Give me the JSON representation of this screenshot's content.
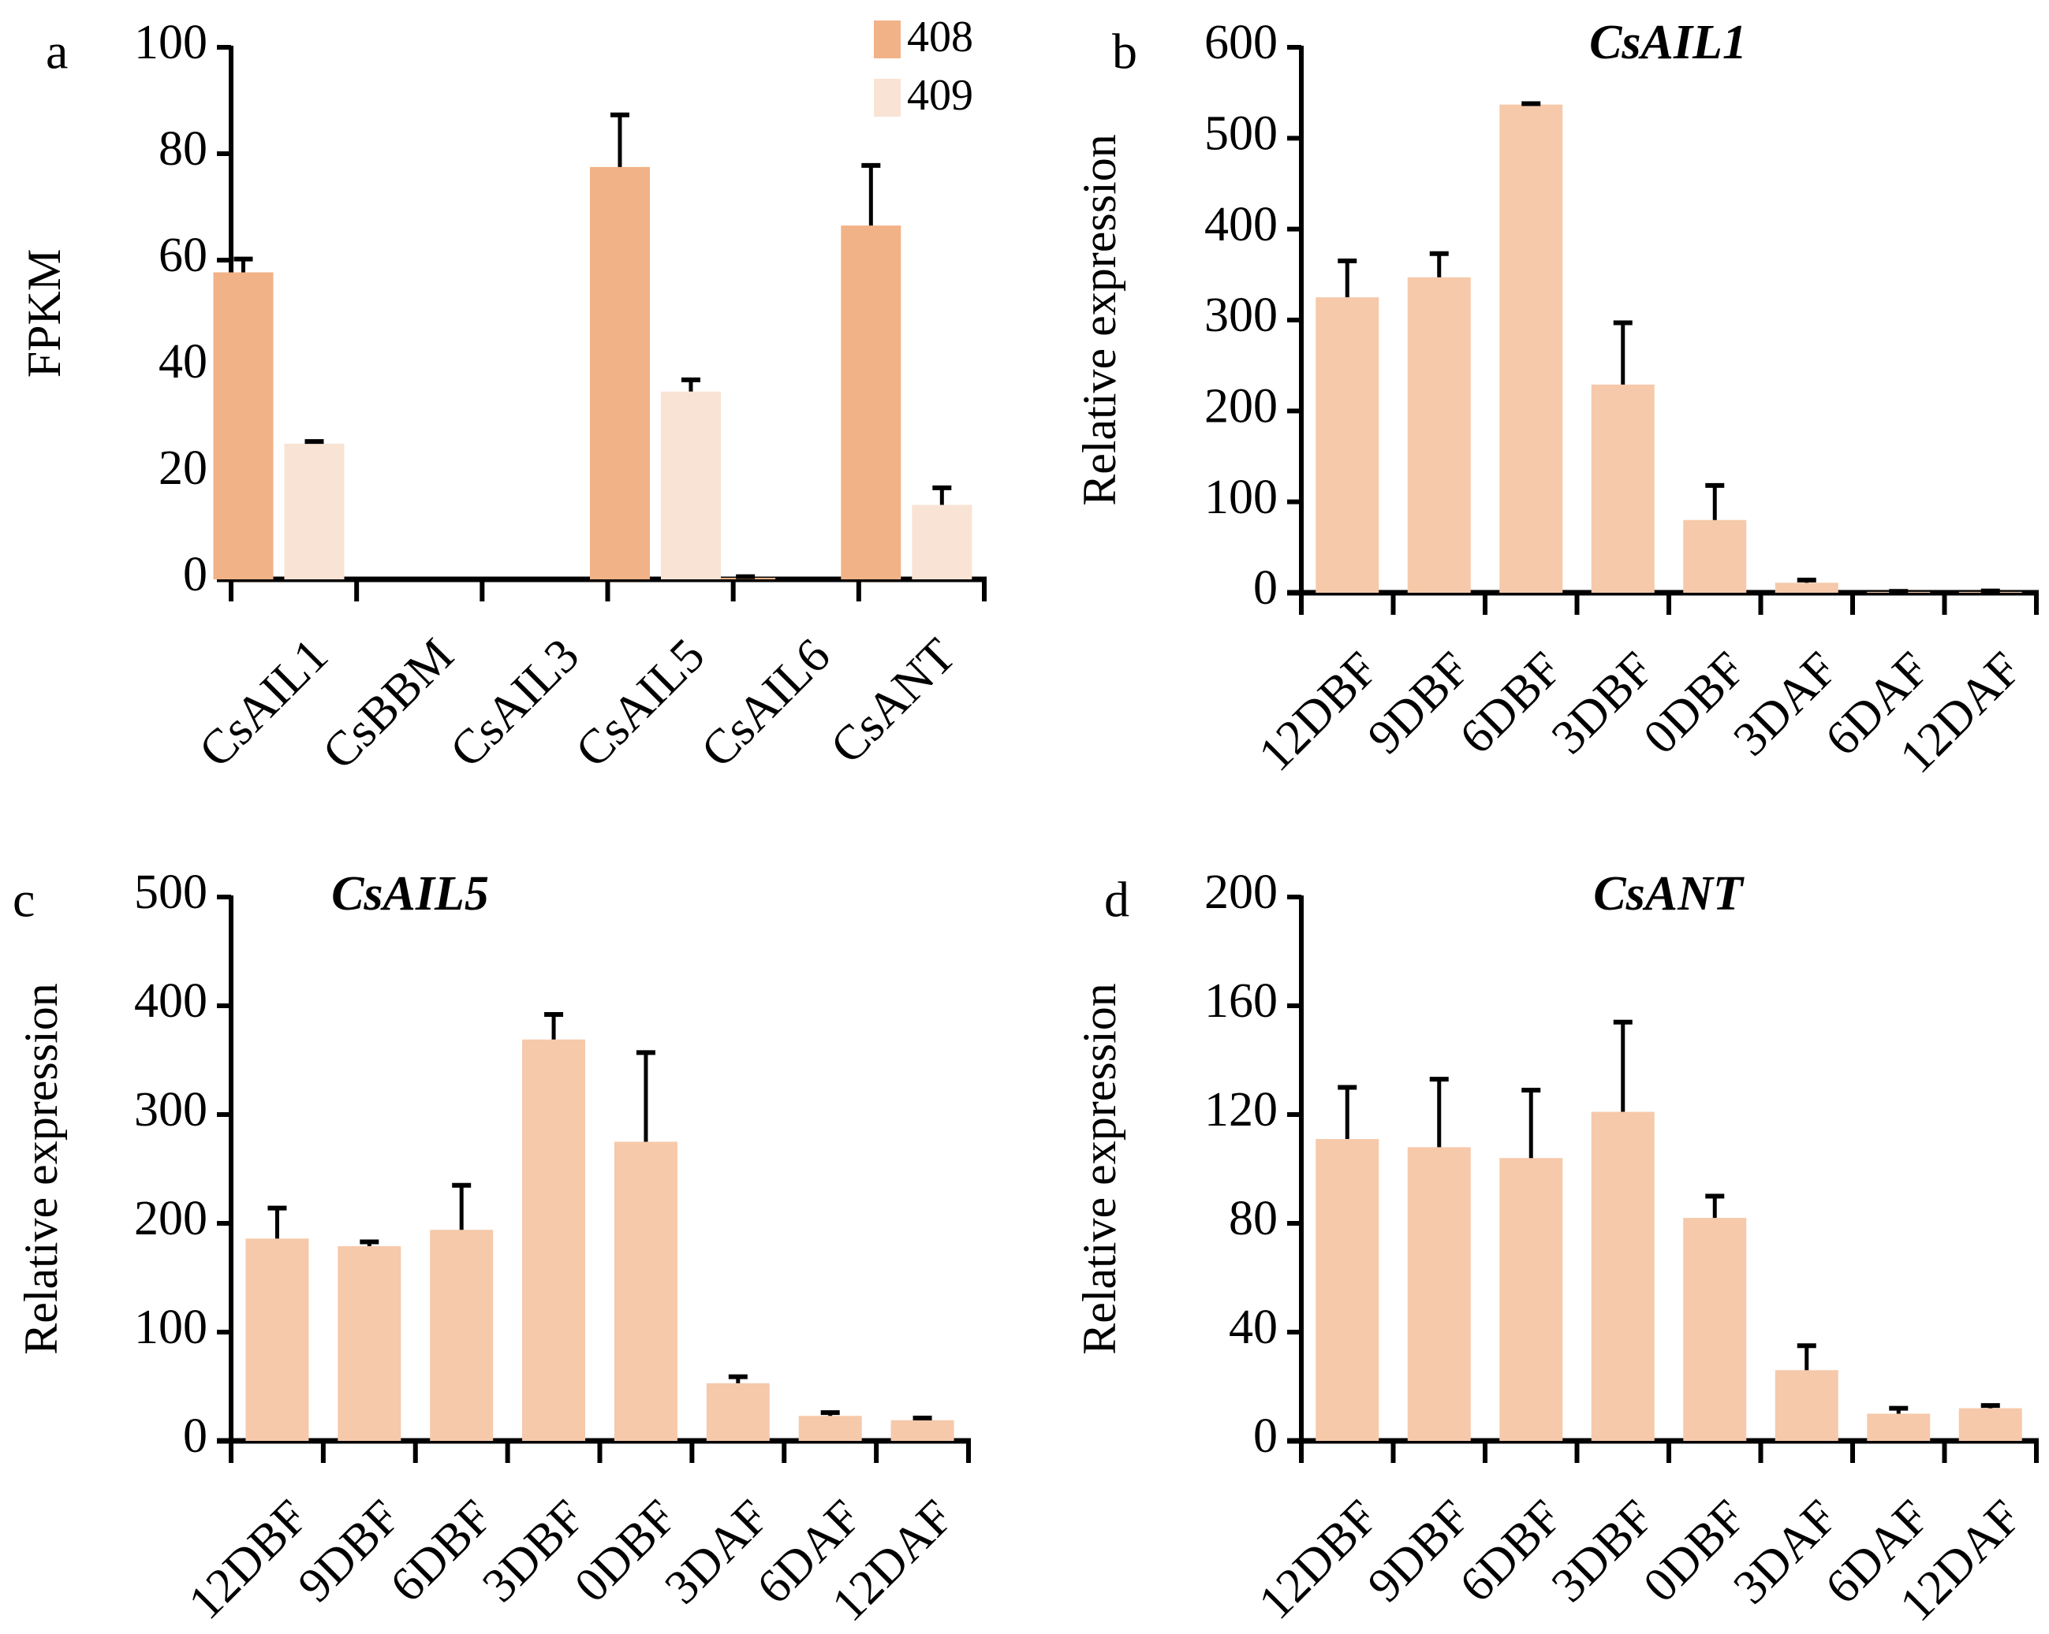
{
  "chart_data": [
    {
      "id": "a",
      "type": "bar",
      "panel_letter": "a",
      "title": "",
      "xlabel": "",
      "ylabel": "FPKM",
      "ylim": [
        0,
        100
      ],
      "yticks": [
        0,
        20,
        40,
        60,
        80,
        100
      ],
      "categories": [
        "CsAIL1",
        "CsBBM",
        "CsAIL3",
        "CsAIL5",
        "CsAIL6",
        "CsANT"
      ],
      "legend_position": "top-right",
      "grid": false,
      "series": [
        {
          "name": "408",
          "color": "#F2B287",
          "values": [
            57.7,
            0,
            0,
            77.5,
            0.3,
            66.5
          ],
          "error_upper": [
            60.2,
            0,
            0,
            87.3,
            0.5,
            77.8
          ]
        },
        {
          "name": "409",
          "color": "#F9E3D5",
          "values": [
            25.5,
            0,
            0,
            35.3,
            0,
            14.0
          ],
          "error_upper": [
            25.9,
            0,
            0,
            37.5,
            0,
            17.2
          ]
        }
      ]
    },
    {
      "id": "b",
      "type": "bar",
      "panel_letter": "b",
      "title": "CsAIL1",
      "xlabel": "",
      "ylabel": "Relative expression",
      "ylim": [
        0,
        600
      ],
      "yticks": [
        0,
        100,
        200,
        300,
        400,
        500,
        600
      ],
      "categories": [
        "12DBF",
        "9DBF",
        "6DBF",
        "3DBF",
        "0DBF",
        "3DAF",
        "6DAF",
        "12DAF"
      ],
      "grid": false,
      "series": [
        {
          "name": "CsAIL1",
          "color": "#F6C9AA",
          "values": [
            325,
            347,
            537,
            229,
            80,
            11,
            1,
            1
          ],
          "error_upper": [
            365,
            373,
            538,
            297,
            118,
            14,
            1.5,
            2
          ]
        }
      ]
    },
    {
      "id": "c",
      "type": "bar",
      "panel_letter": "c",
      "title": "CsAIL5",
      "xlabel": "",
      "ylabel": "Relative expression",
      "ylim": [
        0,
        500
      ],
      "yticks": [
        0,
        100,
        200,
        300,
        400,
        500
      ],
      "categories": [
        "12DBF",
        "9DBF",
        "6DBF",
        "3DBF",
        "0DBF",
        "3DAF",
        "6DAF",
        "12DAF"
      ],
      "grid": false,
      "series": [
        {
          "name": "CsAIL5",
          "color": "#F6C9AA",
          "values": [
            186,
            179,
            194,
            369,
            275,
            53,
            23,
            19
          ],
          "error_upper": [
            214,
            183,
            235,
            392,
            357,
            59,
            26,
            21
          ]
        }
      ]
    },
    {
      "id": "d",
      "type": "bar",
      "panel_letter": "d",
      "title": "CsANT",
      "xlabel": "",
      "ylabel": "Relative expression",
      "ylim": [
        0,
        200
      ],
      "yticks": [
        0,
        40,
        80,
        120,
        160,
        200
      ],
      "categories": [
        "12DBF",
        "9DBF",
        "6DBF",
        "3DBF",
        "0DBF",
        "3DAF",
        "6DAF",
        "12DAF"
      ],
      "grid": false,
      "series": [
        {
          "name": "CsANT",
          "color": "#F6C9AA",
          "values": [
            111,
            108,
            104,
            121,
            82,
            26,
            10,
            12
          ],
          "error_upper": [
            130,
            133,
            129,
            154,
            90,
            35,
            12,
            13
          ]
        }
      ]
    }
  ]
}
